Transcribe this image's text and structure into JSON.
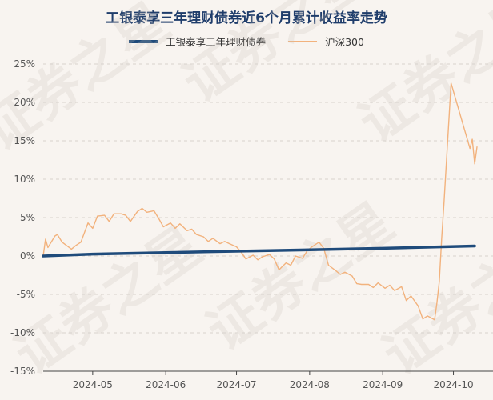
{
  "chart_data": {
    "type": "line",
    "title": "工银泰享三年理财债券近6个月累计收益率走势",
    "xlabel": "",
    "ylabel": "",
    "ylim": [
      -15,
      25
    ],
    "y_ticks": [
      "25%",
      "20%",
      "15%",
      "10%",
      "5%",
      "0%",
      "-5%",
      "-10%",
      "-15%"
    ],
    "x_ticks": [
      "2024-05",
      "2024-06",
      "2024-07",
      "2024-08",
      "2024-09",
      "2024-10"
    ],
    "grid": true,
    "legend_position": "top",
    "colors": {
      "fund": "#1f4b7b",
      "index": "#f2b27d"
    },
    "series": [
      {
        "name": "工银泰享三年理财债券",
        "points": [
          [
            "2024-04-10",
            0.0
          ],
          [
            "2024-05-01",
            0.25
          ],
          [
            "2024-06-01",
            0.45
          ],
          [
            "2024-07-01",
            0.62
          ],
          [
            "2024-08-01",
            0.8
          ],
          [
            "2024-09-01",
            1.0
          ],
          [
            "2024-10-10",
            1.3
          ]
        ]
      },
      {
        "name": "沪深300",
        "points": [
          [
            "2024-04-10",
            0.0
          ],
          [
            "2024-04-11",
            2.2
          ],
          [
            "2024-04-12",
            1.1
          ],
          [
            "2024-04-15",
            2.6
          ],
          [
            "2024-04-16",
            2.8
          ],
          [
            "2024-04-18",
            1.8
          ],
          [
            "2024-04-22",
            0.9
          ],
          [
            "2024-04-24",
            1.4
          ],
          [
            "2024-04-26",
            1.8
          ],
          [
            "2024-04-29",
            4.3
          ],
          [
            "2024-05-01",
            3.6
          ],
          [
            "2024-05-03",
            5.2
          ],
          [
            "2024-05-06",
            5.3
          ],
          [
            "2024-05-08",
            4.5
          ],
          [
            "2024-05-10",
            5.5
          ],
          [
            "2024-05-13",
            5.5
          ],
          [
            "2024-05-15",
            5.3
          ],
          [
            "2024-05-17",
            4.5
          ],
          [
            "2024-05-20",
            5.8
          ],
          [
            "2024-05-22",
            6.2
          ],
          [
            "2024-05-24",
            5.7
          ],
          [
            "2024-05-27",
            5.9
          ],
          [
            "2024-05-29",
            4.9
          ],
          [
            "2024-05-31",
            3.8
          ],
          [
            "2024-06-03",
            4.3
          ],
          [
            "2024-06-05",
            3.6
          ],
          [
            "2024-06-07",
            4.2
          ],
          [
            "2024-06-10",
            3.3
          ],
          [
            "2024-06-12",
            3.5
          ],
          [
            "2024-06-14",
            2.8
          ],
          [
            "2024-06-17",
            2.5
          ],
          [
            "2024-06-19",
            1.9
          ],
          [
            "2024-06-21",
            2.3
          ],
          [
            "2024-06-24",
            1.6
          ],
          [
            "2024-06-26",
            1.9
          ],
          [
            "2024-06-28",
            1.6
          ],
          [
            "2024-07-01",
            1.2
          ],
          [
            "2024-07-03",
            0.5
          ],
          [
            "2024-07-05",
            -0.4
          ],
          [
            "2024-07-08",
            0.1
          ],
          [
            "2024-07-10",
            -0.5
          ],
          [
            "2024-07-12",
            -0.1
          ],
          [
            "2024-07-15",
            0.2
          ],
          [
            "2024-07-17",
            -0.4
          ],
          [
            "2024-07-19",
            -1.8
          ],
          [
            "2024-07-22",
            -0.9
          ],
          [
            "2024-07-24",
            -1.2
          ],
          [
            "2024-07-26",
            0.0
          ],
          [
            "2024-07-29",
            -0.3
          ],
          [
            "2024-07-31",
            0.7
          ],
          [
            "2024-08-02",
            1.2
          ],
          [
            "2024-08-05",
            1.8
          ],
          [
            "2024-08-07",
            1.0
          ],
          [
            "2024-08-09",
            -1.2
          ],
          [
            "2024-08-12",
            -1.9
          ],
          [
            "2024-08-14",
            -2.4
          ],
          [
            "2024-08-16",
            -2.1
          ],
          [
            "2024-08-19",
            -2.6
          ],
          [
            "2024-08-21",
            -3.6
          ],
          [
            "2024-08-23",
            -3.7
          ],
          [
            "2024-08-26",
            -3.7
          ],
          [
            "2024-08-28",
            -4.1
          ],
          [
            "2024-08-30",
            -3.5
          ],
          [
            "2024-09-02",
            -4.2
          ],
          [
            "2024-09-04",
            -3.8
          ],
          [
            "2024-09-06",
            -4.5
          ],
          [
            "2024-09-09",
            -4.0
          ],
          [
            "2024-09-11",
            -5.8
          ],
          [
            "2024-09-13",
            -5.2
          ],
          [
            "2024-09-16",
            -6.5
          ],
          [
            "2024-09-18",
            -8.2
          ],
          [
            "2024-09-20",
            -7.8
          ],
          [
            "2024-09-23",
            -8.3
          ],
          [
            "2024-09-24",
            -6.1
          ],
          [
            "2024-09-25",
            -3.3
          ],
          [
            "2024-09-26",
            2.2
          ],
          [
            "2024-09-27",
            7.0
          ],
          [
            "2024-09-30",
            22.5
          ],
          [
            "2024-10-08",
            14.0
          ],
          [
            "2024-10-09",
            15.2
          ],
          [
            "2024-10-10",
            12.0
          ],
          [
            "2024-10-11",
            14.2
          ]
        ]
      }
    ],
    "watermark": "证券之星"
  }
}
